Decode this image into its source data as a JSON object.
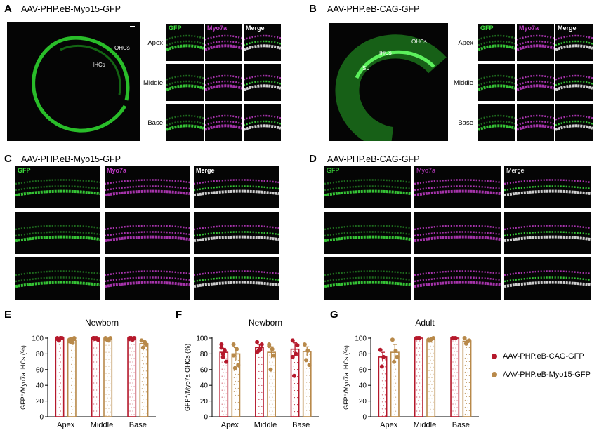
{
  "panels": {
    "A": {
      "letter": "A",
      "title": "AAV-PHP.eB-Myo15-GFP",
      "rows": [
        "Apex",
        "Middle",
        "Base"
      ],
      "cols": [
        "GFP",
        "Myo7a",
        "Merge"
      ],
      "annotations": [
        "OHCs",
        "IHCs"
      ]
    },
    "B": {
      "letter": "B",
      "title": "AAV-PHP.eB-CAG-GFP",
      "rows": [
        "Apex",
        "Middle",
        "Base"
      ],
      "cols": [
        "GFP",
        "Myo7a",
        "Merge"
      ],
      "annotations": [
        "OHCs",
        "IHCs",
        "SL"
      ]
    },
    "C": {
      "letter": "C",
      "title": "AAV-PHP.eB-Myo15-GFP",
      "cols": [
        "GFP",
        "Myo7a",
        "Merge"
      ]
    },
    "D": {
      "letter": "D",
      "title": "AAV-PHP.eB-CAG-GFP",
      "cols": [
        "GFP",
        "Myo7a",
        "Merge"
      ]
    }
  },
  "colors": {
    "cag": "#b5182b",
    "myo15": "#b8894a",
    "gfp": "#3ee63e",
    "myo7a": "#c23cc8"
  },
  "legend": [
    "AAV-PHP.eB-CAG-GFP",
    "AAV-PHP.eB-Myo15-GFP"
  ],
  "chart_data": [
    {
      "panel": "E",
      "type": "bar",
      "title": "Newborn",
      "ylabel": "GFP⁺/Myo7a IHCs (%)",
      "categories": [
        "Apex",
        "Middle",
        "Base"
      ],
      "ylim": [
        0,
        100
      ],
      "yticks": [
        0,
        20,
        40,
        60,
        80,
        100
      ],
      "series": [
        {
          "name": "AAV-PHP.eB-CAG-GFP",
          "values": [
            100,
            100,
            100
          ],
          "sem": [
            0,
            0,
            0
          ],
          "points": [
            [
              100,
              98,
              100,
              100,
              99,
              97,
              100
            ],
            [
              100,
              99,
              100,
              98,
              100,
              100
            ],
            [
              100,
              100,
              98,
              100,
              99,
              100
            ]
          ]
        },
        {
          "name": "AAV-PHP.eB-Myo15-GFP",
          "values": [
            97,
            99,
            93
          ],
          "sem": [
            2,
            1,
            3
          ],
          "points": [
            [
              96,
              99,
              94,
              100,
              98,
              95
            ],
            [
              100,
              98,
              97,
              100,
              99
            ],
            [
              97,
              88,
              95,
              92
            ]
          ]
        }
      ]
    },
    {
      "panel": "F",
      "type": "bar",
      "title": "Newborn",
      "ylabel": "GFP⁺/Myo7a OHCs (%)",
      "categories": [
        "Apex",
        "Middle",
        "Base"
      ],
      "ylim": [
        0,
        100
      ],
      "yticks": [
        0,
        20,
        40,
        60,
        80,
        100
      ],
      "series": [
        {
          "name": "AAV-PHP.eB-CAG-GFP",
          "values": [
            82,
            88,
            86
          ],
          "sem": [
            5,
            4,
            8
          ],
          "points": [
            [
              88,
              76,
              84,
              70,
              92,
              80
            ],
            [
              95,
              84,
              86,
              92,
              82
            ],
            [
              97,
              52,
              80,
              91,
              76
            ]
          ]
        },
        {
          "name": "AAV-PHP.eB-Myo15-GFP",
          "values": [
            80,
            82,
            83
          ],
          "sem": [
            8,
            7,
            6
          ],
          "points": [
            [
              92,
              62,
              86,
              66,
              78
            ],
            [
              90,
              60,
              86,
              78,
              92
            ],
            [
              92,
              72,
              84,
              66
            ]
          ]
        }
      ]
    },
    {
      "panel": "G",
      "type": "bar",
      "title": "Adult",
      "ylabel": "GFP⁺/Myo7a IHCs (%)",
      "categories": [
        "Apex",
        "Middle",
        "Base"
      ],
      "ylim": [
        0,
        100
      ],
      "yticks": [
        0,
        20,
        40,
        60,
        80,
        100
      ],
      "series": [
        {
          "name": "AAV-PHP.eB-CAG-GFP",
          "values": [
            76,
            100,
            100
          ],
          "sem": [
            6,
            0,
            0
          ],
          "points": [
            [
              85,
              64,
              76
            ],
            [
              100,
              100,
              100
            ],
            [
              100,
              100,
              100
            ]
          ]
        },
        {
          "name": "AAV-PHP.eB-Myo15-GFP",
          "values": [
            82,
            98,
            96
          ],
          "sem": [
            10,
            1,
            2
          ],
          "points": [
            [
              98,
              70,
              84,
              76
            ],
            [
              98,
              97,
              99,
              100
            ],
            [
              100,
              93,
              96,
              97
            ]
          ]
        }
      ]
    }
  ]
}
